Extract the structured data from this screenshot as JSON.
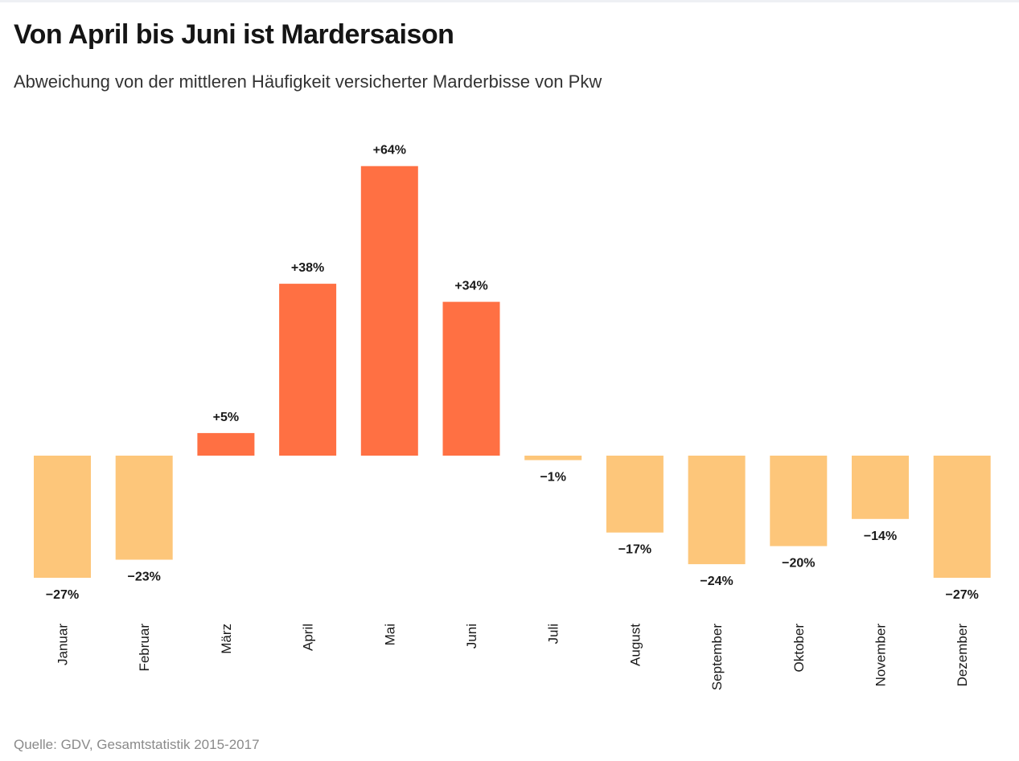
{
  "title": "Von April bis Juni ist Mardersaison",
  "subtitle": "Abweichung von der mittleren Häufigkeit versicherter Marderbisse von Pkw",
  "source": "Quelle: GDV, Gesamtstatistik 2015-2017",
  "colors": {
    "highlight": "#ff7043",
    "normal": "#fdc67a"
  },
  "chart_data": {
    "type": "bar",
    "categories": [
      "Januar",
      "Februar",
      "März",
      "April",
      "Mai",
      "Juni",
      "Juli",
      "August",
      "September",
      "Oktober",
      "November",
      "Dezember"
    ],
    "values": [
      -27,
      -23,
      5,
      38,
      64,
      34,
      -1,
      -17,
      -24,
      -20,
      -14,
      -27
    ],
    "labels": [
      "−27%",
      "−23%",
      "+5%",
      "+38%",
      "+64%",
      "+34%",
      "−1%",
      "−17%",
      "−24%",
      "−20%",
      "−14%",
      "−27%"
    ],
    "highlighted": [
      "März",
      "April",
      "Mai",
      "Juni"
    ],
    "ylim": [
      -27,
      64
    ],
    "grid": false,
    "legend": "none"
  }
}
